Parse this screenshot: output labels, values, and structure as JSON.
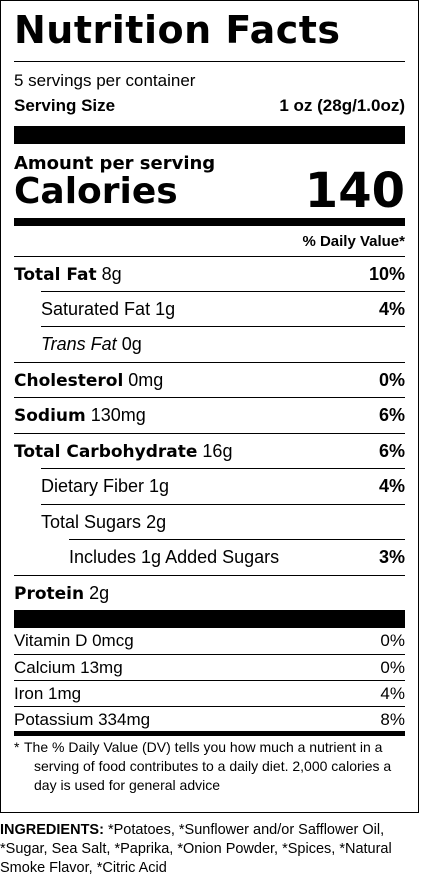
{
  "title": "Nutrition Facts",
  "servings_per_container": "5 servings per container",
  "serving_size_label": "Serving Size",
  "serving_size_value": "1 oz (28g/1.0oz)",
  "amount_per_serving": "Amount per serving",
  "calories_label": "Calories",
  "calories_value": "140",
  "daily_value_header": "% Daily Value*",
  "nutrients": {
    "total_fat": {
      "label": "Total Fat",
      "amount": "8g",
      "dv": "10%"
    },
    "saturated_fat": {
      "label": "Saturated Fat",
      "amount": "1g",
      "dv": "4%"
    },
    "trans_fat": {
      "label": "Trans Fat",
      "amount": "0g",
      "dv": ""
    },
    "cholesterol": {
      "label": "Cholesterol",
      "amount": "0mg",
      "dv": "0%"
    },
    "sodium": {
      "label": "Sodium",
      "amount": "130mg",
      "dv": "6%"
    },
    "total_carbohydrate": {
      "label": "Total Carbohydrate",
      "amount": "16g",
      "dv": "6%"
    },
    "dietary_fiber": {
      "label": "Dietary Fiber",
      "amount": "1g",
      "dv": "4%"
    },
    "total_sugars": {
      "label": "Total Sugars",
      "amount": "2g",
      "dv": ""
    },
    "added_sugars": {
      "label": "Includes 1g Added Sugars",
      "amount": "",
      "dv": "3%"
    },
    "protein": {
      "label": "Protein",
      "amount": "2g",
      "dv": ""
    }
  },
  "vitamins": [
    {
      "label": "Vitamin D 0mcg",
      "dv": "0%"
    },
    {
      "label": "Calcium 13mg",
      "dv": "0%"
    },
    {
      "label": "Iron 1mg",
      "dv": "4%"
    },
    {
      "label": "Potassium 334mg",
      "dv": "8%"
    }
  ],
  "footnote_star": "*",
  "footnote": "The % Daily Value (DV) tells you how much a nutrient in a serving of food contributes to a daily diet. 2,000 calories a day is used for general advice",
  "ingredients_label": "INGREDIENTS:",
  "ingredients_text": "*Potatoes, *Sunflower and/or Safflower Oil, *Sugar, Sea Salt, *Paprika, *Onion Powder, *Spices, *Natural Smoke Flavor, *Citric Acid"
}
